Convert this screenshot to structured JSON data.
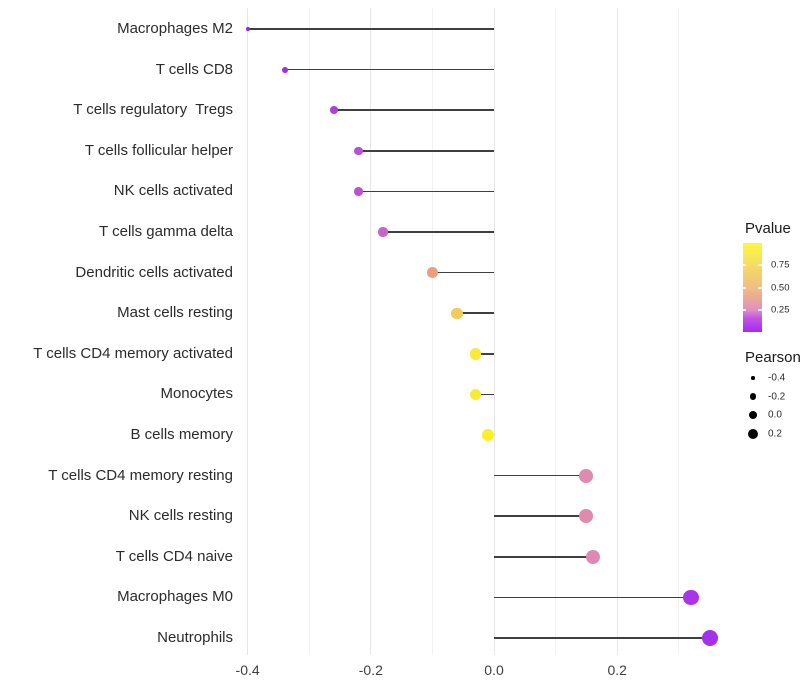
{
  "chart_data": {
    "type": "lollipop",
    "title": "",
    "xlabel": "",
    "ylabel": "",
    "grid": "vertical-only",
    "background": "#ffffff",
    "stem_color": "#3f3f3f",
    "xlim": [
      -0.44,
      0.39
    ],
    "x_ticks": [
      -0.4,
      -0.2,
      0.0,
      0.2
    ],
    "x_tick_labels": [
      "-0.4",
      "-0.2",
      "0.0",
      "0.2"
    ],
    "x_minor_ticks": [
      -0.3,
      -0.1,
      0.1,
      0.3
    ],
    "points": [
      {
        "label": "Macrophages M2",
        "pearson": -0.4,
        "pvalue_est": 0.1,
        "color": "#9c1cf0"
      },
      {
        "label": "T cells CD8",
        "pearson": -0.34,
        "pvalue_est": 0.12,
        "color": "#a428ee"
      },
      {
        "label": "T cells regulatory  Tregs",
        "pearson": -0.26,
        "pvalue_est": 0.22,
        "color": "#b23bdc"
      },
      {
        "label": "T cells follicular helper",
        "pearson": -0.22,
        "pvalue_est": 0.27,
        "color": "#bc4ed4"
      },
      {
        "label": "NK cells activated",
        "pearson": -0.22,
        "pvalue_est": 0.27,
        "color": "#bd50d3"
      },
      {
        "label": "T cells gamma delta",
        "pearson": -0.18,
        "pvalue_est": 0.33,
        "color": "#c765c9"
      },
      {
        "label": "Dendritic cells activated",
        "pearson": -0.1,
        "pvalue_est": 0.62,
        "color": "#e8a17c"
      },
      {
        "label": "Mast cells resting",
        "pearson": -0.06,
        "pvalue_est": 0.8,
        "color": "#f2cb5a"
      },
      {
        "label": "T cells CD4 memory activated",
        "pearson": -0.03,
        "pvalue_est": 0.92,
        "color": "#f7ea38"
      },
      {
        "label": "Monocytes",
        "pearson": -0.03,
        "pvalue_est": 0.93,
        "color": "#f7ec33"
      },
      {
        "label": "B cells memory",
        "pearson": -0.01,
        "pvalue_est": 0.97,
        "color": "#f9f028"
      },
      {
        "label": "T cells CD4 memory resting",
        "pearson": 0.15,
        "pvalue_est": 0.44,
        "color": "#df8bb0"
      },
      {
        "label": "NK cells resting",
        "pearson": 0.15,
        "pvalue_est": 0.44,
        "color": "#df8bac"
      },
      {
        "label": "T cells CD4 naive",
        "pearson": 0.16,
        "pvalue_est": 0.45,
        "color": "#de89b4"
      },
      {
        "label": "Macrophages M0",
        "pearson": 0.32,
        "pvalue_est": 0.13,
        "color": "#a935e8"
      },
      {
        "label": "Neutrophils",
        "pearson": 0.35,
        "pvalue_est": 0.12,
        "color": "#a62fec"
      }
    ],
    "legend": {
      "pvalue": {
        "title": "Pvalue",
        "tick_labels": [
          "0.75",
          "0.50",
          "0.25"
        ],
        "tick_values": [
          0.75,
          0.5,
          0.25
        ],
        "gradient_top_to_bottom": [
          "#fbf840",
          "#f6dc64",
          "#eebe83",
          "#eca894",
          "#de8fc7",
          "#c054e4",
          "#a928f4"
        ]
      },
      "pearson": {
        "title": "Pearson",
        "entry_labels": [
          "-0.4",
          "-0.2",
          "0.0",
          "0.2"
        ],
        "entry_values": [
          -0.4,
          -0.2,
          0.0,
          0.2
        ],
        "dot_color": "#000000"
      }
    }
  }
}
